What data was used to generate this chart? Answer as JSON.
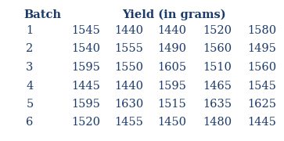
{
  "title": "Yield (in grams)",
  "col_header": "Batch",
  "batches": [
    1,
    2,
    3,
    4,
    5,
    6
  ],
  "yields": [
    [
      1545,
      1440,
      1440,
      1520,
      1580
    ],
    [
      1540,
      1555,
      1490,
      1560,
      1495
    ],
    [
      1595,
      1550,
      1605,
      1510,
      1560
    ],
    [
      1445,
      1440,
      1595,
      1465,
      1545
    ],
    [
      1595,
      1630,
      1515,
      1635,
      1625
    ],
    [
      1520,
      1455,
      1450,
      1480,
      1445
    ]
  ],
  "text_color": "#1a3a6b",
  "bg_color": "#ffffff",
  "header_fontsize": 10.5,
  "data_fontsize": 10.5
}
